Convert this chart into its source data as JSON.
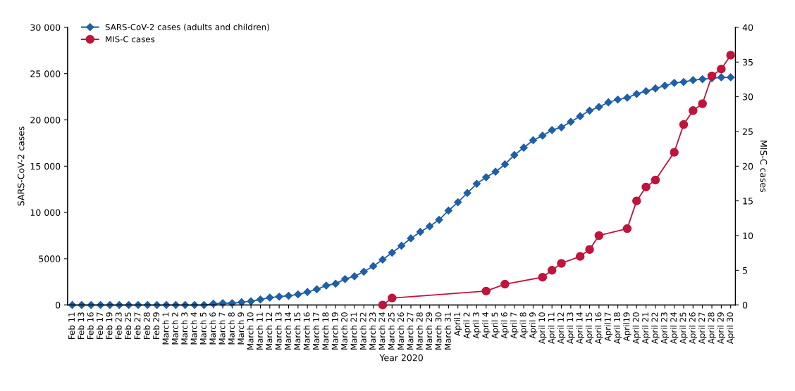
{
  "chart_data": {
    "type": "line",
    "xlabel": "Year 2020",
    "ylabel": "SARS-CoV-2 cases",
    "y2label": "MIS-C cases",
    "categories": [
      "Feb 11",
      "Feb 13",
      "Feb 16",
      "Feb 17",
      "Feb 19",
      "Feb 23",
      "Feb 25",
      "Feb 27",
      "Feb 28",
      "Feb 29",
      "March 1",
      "March 2",
      "March 3",
      "March 4",
      "March 5",
      "March 6",
      "March 7",
      "March 8",
      "March 9",
      "March 10",
      "March 11",
      "March 12",
      "March 13",
      "March 14",
      "March 15",
      "March 16",
      "March 17",
      "March 18",
      "March 19",
      "March 20",
      "March 21",
      "March 22",
      "March 23",
      "March 24",
      "March 25",
      "March 26",
      "March 27",
      "March 28",
      "March 29",
      "March 30",
      "March 31",
      "April1",
      "April 2",
      "April 3",
      "April 4",
      "April 5",
      "April 6",
      "April 7",
      "April 8",
      "April 9",
      "April 10",
      "April 11",
      "April 12",
      "April 13",
      "April 14",
      "April 15",
      "April 16",
      "April17",
      "April 18",
      "April19",
      "April 20",
      "April 21",
      "April 22",
      "April 23",
      "April 24",
      "April 25",
      "April 26",
      "April 27",
      "April 28",
      "April 29",
      "April 30"
    ],
    "series": [
      {
        "name": "SARS-CoV-2 cases (adults and children)",
        "color": "#1f5fa8",
        "marker": "diamond",
        "values": [
          0,
          0,
          0,
          0,
          0,
          0,
          0,
          0,
          0,
          0,
          0,
          0,
          0,
          0,
          0,
          130,
          200,
          200,
          300,
          400,
          600,
          800,
          900,
          1000,
          1150,
          1400,
          1700,
          2100,
          2300,
          2800,
          3100,
          3600,
          4200,
          4900,
          5650,
          6400,
          7200,
          7900,
          8500,
          9200,
          10200,
          11100,
          12100,
          13100,
          13800,
          14400,
          15200,
          16200,
          17000,
          17800,
          18300,
          18900,
          19200,
          19800,
          20400,
          21000,
          21400,
          21900,
          22200,
          22400,
          22800,
          23100,
          23400,
          23700,
          24000,
          24100,
          24300,
          24400,
          24500,
          24600,
          24600
        ]
      },
      {
        "name": "MIS-C cases",
        "color": "#c0143c",
        "marker": "circle",
        "axis": "y2",
        "values": [
          null,
          null,
          null,
          null,
          null,
          null,
          null,
          null,
          null,
          null,
          null,
          null,
          null,
          null,
          null,
          null,
          null,
          null,
          null,
          null,
          null,
          null,
          null,
          null,
          null,
          null,
          null,
          null,
          null,
          null,
          null,
          null,
          null,
          0,
          1,
          null,
          null,
          null,
          null,
          null,
          null,
          null,
          null,
          null,
          2,
          null,
          3,
          null,
          null,
          null,
          4,
          5,
          6,
          null,
          7,
          8,
          10,
          null,
          null,
          11,
          15,
          17,
          18,
          null,
          22,
          26,
          28,
          29,
          33,
          34,
          36
        ]
      }
    ],
    "ylim": [
      0,
      30000
    ],
    "yticks": [
      0,
      5000,
      {
        "value": 10000,
        "label": "10 000"
      },
      {
        "value": 15000,
        "label": "15 000"
      },
      {
        "value": 20000,
        "label": "20 000"
      },
      {
        "value": 25000,
        "label": "25 000"
      },
      {
        "value": 30000,
        "label": "30 000"
      }
    ],
    "y2lim": [
      0,
      40
    ],
    "y2ticks": [
      0,
      5,
      10,
      15,
      20,
      25,
      30,
      35,
      40
    ],
    "legend": "top left",
    "grid": false
  }
}
